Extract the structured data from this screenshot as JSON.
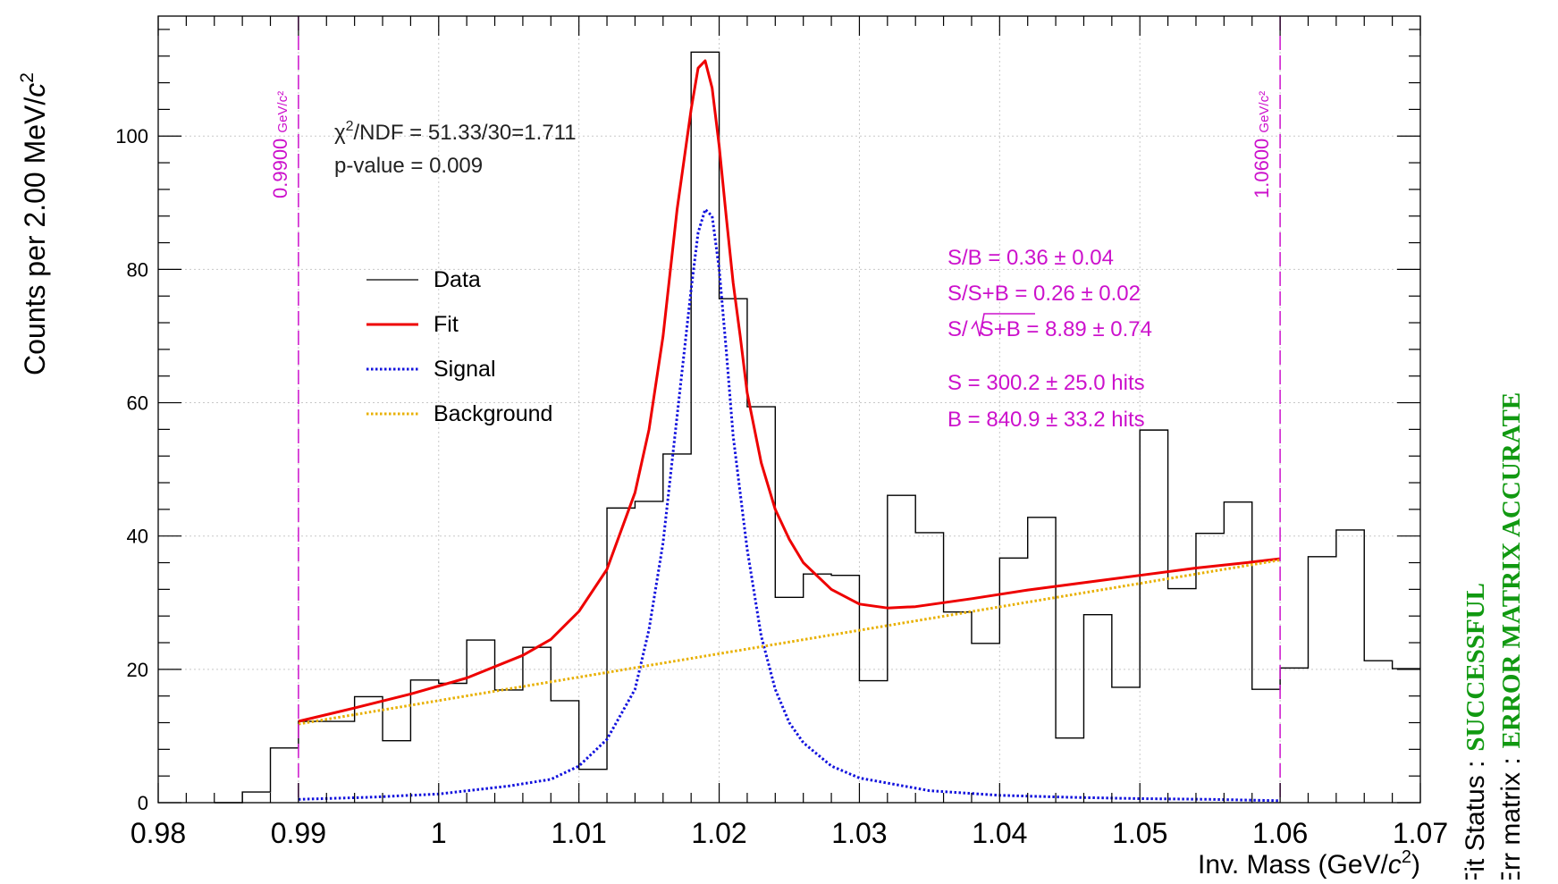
{
  "chart_data": {
    "type": "bar",
    "xlabel": "Inv. Mass (GeV/c²)",
    "xlabel_parts": {
      "pre": "Inv. Mass (GeV/",
      "italic": "c",
      "sup": "2",
      "post": ")"
    },
    "ylabel": "Counts per 2.00 MeV/c²",
    "ylabel_parts": {
      "pre": "Counts per 2.00 MeV/",
      "italic": "c",
      "sup": "2"
    },
    "xlim": [
      0.98,
      1.07
    ],
    "ylim": [
      0,
      118
    ],
    "x_ticks": [
      0.98,
      0.99,
      1.0,
      1.01,
      1.02,
      1.03,
      1.04,
      1.05,
      1.06,
      1.07
    ],
    "x_tick_labels": [
      "0.98",
      "0.99",
      "1",
      "1.01",
      "1.02",
      "1.03",
      "1.04",
      "1.05",
      "1.06",
      "1.07"
    ],
    "y_ticks": [
      0,
      20,
      40,
      60,
      80,
      100
    ],
    "y_tick_labels": [
      "0",
      "20",
      "40",
      "60",
      "80",
      "100"
    ],
    "grid": true,
    "histogram": {
      "name": "Data",
      "bin_edges": [
        0.984,
        0.986,
        0.988,
        0.99,
        0.992,
        0.994,
        0.996,
        0.998,
        1.0,
        1.002,
        1.004,
        1.006,
        1.008,
        1.01,
        1.012,
        1.014,
        1.016,
        1.018,
        1.02,
        1.022,
        1.024,
        1.026,
        1.028,
        1.03,
        1.032,
        1.034,
        1.036,
        1.038,
        1.04,
        1.042,
        1.044,
        1.046,
        1.048,
        1.05,
        1.052,
        1.054,
        1.056,
        1.058,
        1.06,
        1.062,
        1.064,
        1.066,
        1.068,
        1.07
      ],
      "counts": [
        0,
        1.6,
        8.2,
        12.2,
        12.2,
        15.9,
        9.3,
        18.4,
        17.9,
        24.4,
        16.9,
        23.3,
        15.3,
        5.0,
        44.2,
        45.2,
        52.3,
        112.6,
        75.6,
        59.4,
        30.8,
        34.3,
        34.1,
        18.3,
        46.1,
        40.5,
        28.6,
        23.9,
        36.7,
        42.8,
        9.7,
        28.2,
        17.3,
        55.9,
        32.1,
        40.4,
        45.1,
        17.0,
        20.2,
        36.9,
        40.9,
        21.3,
        20.1
      ]
    },
    "series": [
      {
        "name": "Fit",
        "color": "#ee0000",
        "style": "solid",
        "x": [
          0.99,
          0.994,
          0.998,
          1.002,
          1.006,
          1.008,
          1.01,
          1.012,
          1.014,
          1.015,
          1.016,
          1.017,
          1.018,
          1.0185,
          1.019,
          1.0195,
          1.02,
          1.0205,
          1.021,
          1.0215,
          1.022,
          1.023,
          1.024,
          1.025,
          1.026,
          1.028,
          1.03,
          1.032,
          1.034,
          1.038,
          1.042,
          1.046,
          1.05,
          1.054,
          1.058,
          1.06
        ],
        "y": [
          12.2,
          14.2,
          16.3,
          18.7,
          22.1,
          24.5,
          28.7,
          35.0,
          46.5,
          56.0,
          70.0,
          89.0,
          104.0,
          110.2,
          111.3,
          107.2,
          98.5,
          88.0,
          78.0,
          70.0,
          61.5,
          51.0,
          44.0,
          39.5,
          36.0,
          32.0,
          29.8,
          29.2,
          29.4,
          30.6,
          31.9,
          33.0,
          34.1,
          35.2,
          36.1,
          36.6
        ]
      },
      {
        "name": "Signal",
        "color": "#1111dd",
        "style": "dotted",
        "x": [
          0.99,
          0.995,
          1.0,
          1.005,
          1.008,
          1.01,
          1.012,
          1.014,
          1.015,
          1.016,
          1.017,
          1.018,
          1.0185,
          1.019,
          1.0195,
          1.02,
          1.0205,
          1.021,
          1.022,
          1.023,
          1.024,
          1.025,
          1.026,
          1.028,
          1.03,
          1.035,
          1.04,
          1.045,
          1.05,
          1.055,
          1.06
        ],
        "y": [
          0.5,
          0.8,
          1.3,
          2.5,
          3.5,
          5.5,
          9.5,
          17.0,
          26.0,
          39.0,
          58.0,
          77.0,
          85.5,
          89.0,
          88.0,
          80.0,
          68.0,
          55.0,
          38.0,
          25.0,
          17.0,
          12.0,
          9.0,
          5.5,
          3.7,
          1.8,
          1.1,
          0.8,
          0.6,
          0.5,
          0.3
        ]
      },
      {
        "name": "Background",
        "color": "#e8b000",
        "style": "dotted",
        "x": [
          0.99,
          1.06
        ],
        "y": [
          11.8,
          36.4
        ]
      }
    ],
    "vertical_markers": [
      {
        "x": 0.99,
        "label": "0.9900",
        "unit": "GeV/c²",
        "color": "#cc11cc"
      },
      {
        "x": 1.06,
        "label": "1.0600",
        "unit": "GeV/c²",
        "color": "#cc11cc"
      }
    ],
    "legend": {
      "placement": "upper-left",
      "entries": [
        {
          "label": "Data",
          "color": "#000000",
          "style": "solid"
        },
        {
          "label": "Fit",
          "color": "#ee0000",
          "style": "solid"
        },
        {
          "label": "Signal",
          "color": "#1111dd",
          "style": "dotted"
        },
        {
          "label": "Background",
          "color": "#e8b000",
          "style": "dotted"
        }
      ]
    },
    "annotations": {
      "chi2": {
        "pre": "χ",
        "sup": "2",
        "post": "/NDF = 51.33/30=1.711"
      },
      "pvalue": "p-value = 0.009",
      "sb": "S/B = 0.36 ± 0.04",
      "ssb": "S/S+B = 0.26 ± 0.02",
      "significance": {
        "pre": "S/",
        "radicand": "S+B",
        "post": " = 8.89 ± 0.74"
      },
      "s_hits": "S = 300.2 ± 25.0 hits",
      "b_hits": "B = 840.9 ± 33.2 hits",
      "color": "#cc11cc"
    },
    "fit_status": {
      "status_label": "Fit Status :",
      "status_value": "SUCCESSFUL",
      "matrix_label": "Err matrix :",
      "matrix_value": "ERROR MATRIX ACCURATE",
      "value_color": "#119911"
    }
  }
}
